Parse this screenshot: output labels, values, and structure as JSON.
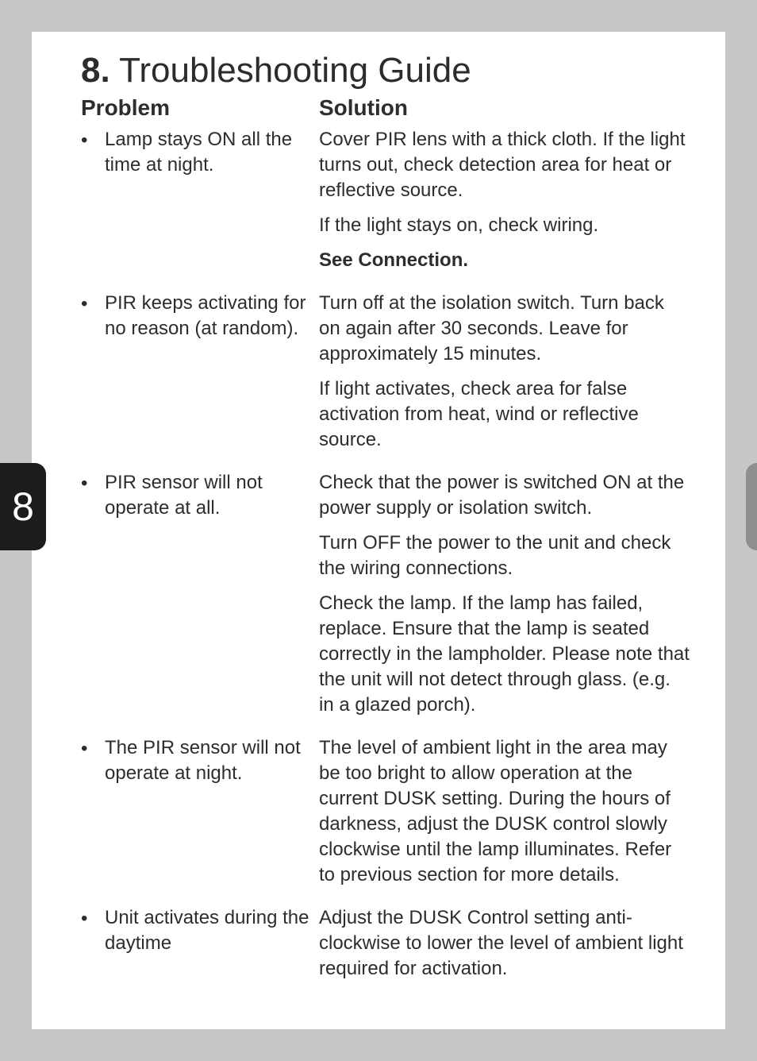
{
  "page_bg": "#c6c7c8",
  "card_bg": "#ffffff",
  "text_color": "#2d2d2d",
  "side_tab": {
    "bg": "#1c1c1c",
    "fg": "#ffffff",
    "label": "8"
  },
  "title": {
    "number": "8.",
    "text": " Troubleshooting Guide",
    "fontsize": 44
  },
  "headers": {
    "problem": "Problem",
    "solution": "Solution",
    "fontsize": 28
  },
  "body_fontsize": 24,
  "line_height": 32,
  "rows": [
    {
      "problem": "Lamp stays ON all the time at night.",
      "solutions": [
        "Cover PIR lens with a thick cloth. If the light turns out, check detection area for heat or reflective source.",
        "If the light stays on, check wiring.",
        "See Connection."
      ],
      "solution_bold_indexes": [
        2
      ]
    },
    {
      "problem": "PIR keeps activating for no reason (at random).",
      "solutions": [
        "Turn off at the isolation switch. Turn back on again after 30 seconds. Leave for approximately 15 minutes.",
        "If light activates, check area for false activation from heat, wind or reflective source."
      ],
      "solution_bold_indexes": []
    },
    {
      "problem": "PIR sensor will not operate at all.",
      "solutions": [
        "Check that the power is switched ON at the power supply or isolation switch.",
        "Turn OFF the power to the unit and check the wiring connections.",
        "Check the lamp. If the lamp has failed, replace. Ensure that the lamp is seated correctly in the lampholder. Please note that the unit will not detect through glass. (e.g. in a glazed porch)."
      ],
      "solution_bold_indexes": []
    },
    {
      "problem": "The PIR sensor will not operate at night.",
      "solutions": [
        "The level of ambient light in the area may be too bright to allow operation at the current DUSK setting. During the hours of darkness, adjust the DUSK control slowly clockwise until the lamp illuminates. Refer to previous section for more details."
      ],
      "solution_bold_indexes": []
    },
    {
      "problem": "Unit activates during the daytime",
      "solutions": [
        "Adjust the DUSK Control setting anti-clockwise to lower the level of ambient light required for activation."
      ],
      "solution_bold_indexes": []
    }
  ]
}
